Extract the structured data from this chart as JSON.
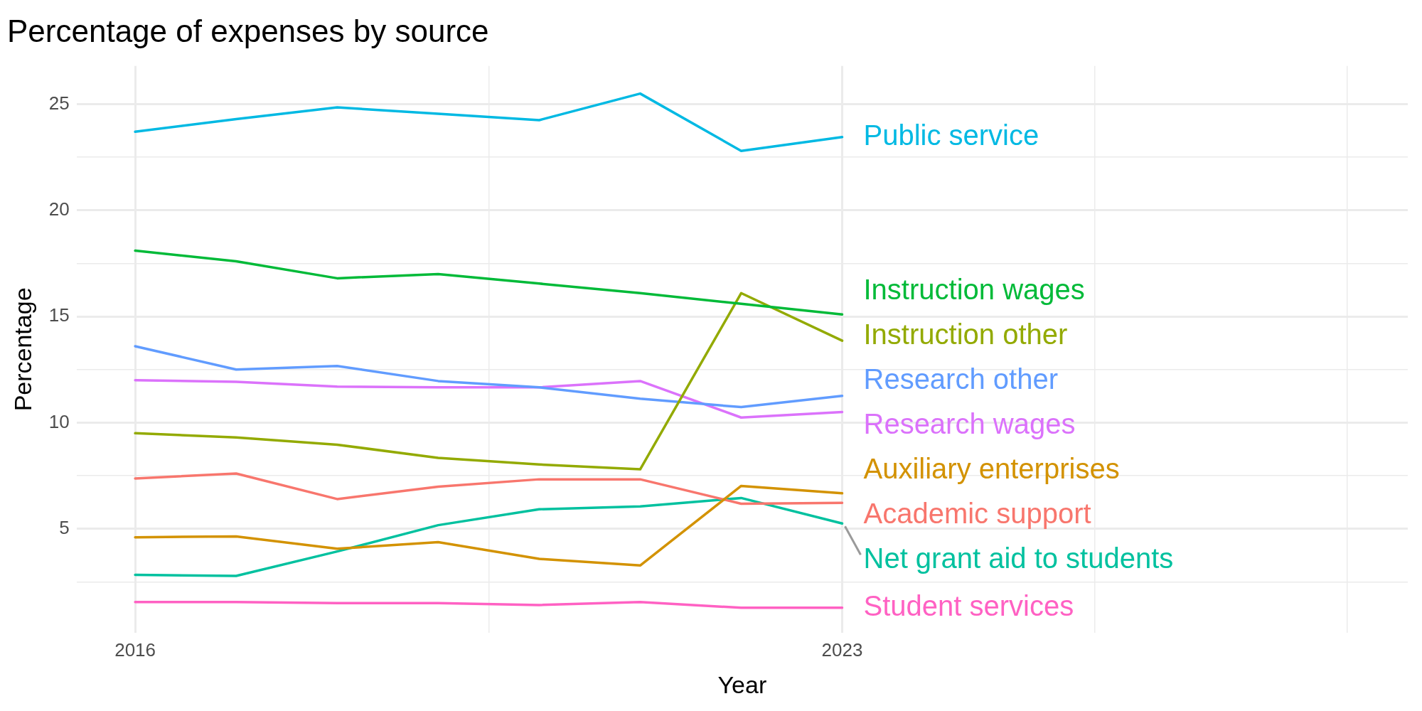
{
  "chart_data": {
    "type": "line",
    "title": "Percentage of expenses by source",
    "xlabel": "Year",
    "ylabel": "Percentage",
    "x": [
      2016,
      2017,
      2018,
      2019,
      2020,
      2021,
      2022,
      2023
    ],
    "series": [
      {
        "name": "Public service",
        "color": "#00b9e3",
        "values": [
          23.7,
          24.3,
          24.85,
          24.55,
          24.25,
          25.5,
          22.8,
          23.45
        ]
      },
      {
        "name": "Instruction wages",
        "color": "#00ba38",
        "values": [
          18.1,
          17.6,
          16.8,
          17.0,
          16.55,
          16.1,
          15.6,
          15.1
        ]
      },
      {
        "name": "Instruction other",
        "color": "#93aa00",
        "values": [
          9.5,
          9.3,
          8.96,
          8.34,
          8.03,
          7.8,
          16.1,
          13.86
        ]
      },
      {
        "name": "Research other",
        "color": "#619cff",
        "values": [
          13.6,
          12.5,
          12.67,
          11.96,
          11.66,
          11.13,
          10.73,
          11.26
        ]
      },
      {
        "name": "Research wages",
        "color": "#db72fb",
        "values": [
          12.0,
          11.92,
          11.7,
          11.66,
          11.66,
          11.96,
          10.24,
          10.5
        ]
      },
      {
        "name": "Auxiliary enterprises",
        "color": "#d39200",
        "values": [
          4.6,
          4.64,
          4.06,
          4.37,
          3.58,
          3.27,
          7.02,
          6.67
        ]
      },
      {
        "name": "Academic support",
        "color": "#f8766d",
        "values": [
          7.37,
          7.6,
          6.4,
          6.98,
          7.33,
          7.33,
          6.18,
          6.22
        ]
      },
      {
        "name": "Net grant aid to students",
        "color": "#00c19f",
        "values": [
          2.83,
          2.78,
          3.93,
          5.17,
          5.92,
          6.05,
          6.45,
          5.25
        ]
      },
      {
        "name": "Student services",
        "color": "#ff61c3",
        "values": [
          1.55,
          1.55,
          1.5,
          1.5,
          1.41,
          1.55,
          1.28,
          1.28
        ]
      }
    ],
    "xlim": [
      2015.42,
      2028.6
    ],
    "xticks": [
      2016,
      {
        "value": 2019.5,
        "label": null
      },
      2023,
      {
        "value": 2025.5,
        "label": null
      },
      {
        "value": 2028,
        "label": null
      }
    ],
    "ylim": [
      0.1,
      26.8
    ],
    "yticks": [
      {
        "value": 2.5,
        "label": null
      },
      5,
      {
        "value": 7.5,
        "label": null
      },
      10,
      {
        "value": 12.5,
        "label": null
      },
      15,
      {
        "value": 17.5,
        "label": null
      },
      20,
      {
        "value": 22.5,
        "label": null
      },
      25
    ],
    "grid": true,
    "legend": false,
    "marker": "none",
    "line_style": "solid"
  }
}
